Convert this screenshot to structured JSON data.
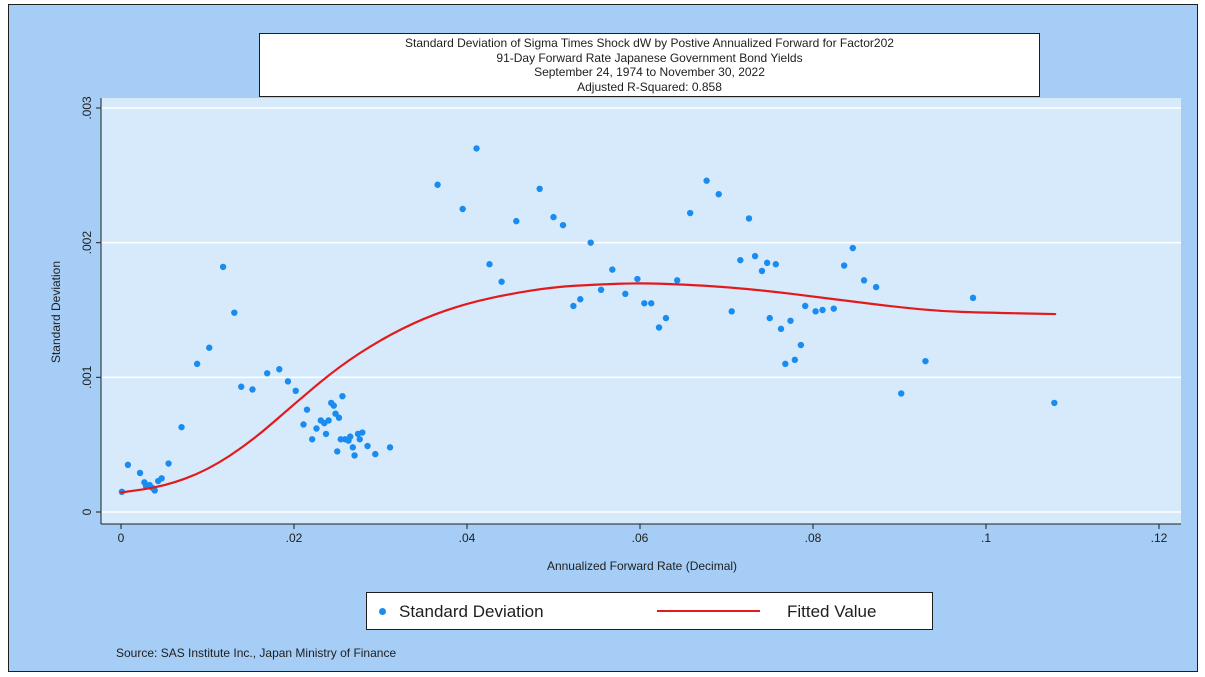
{
  "title_lines": [
    "Standard Deviation of Sigma Times Shock dW by Postive Annualized Forward for Factor202",
    "91-Day Forward Rate Japanese Government Bond Yields",
    "September 24, 1974 to November 30, 2022",
    "Adjusted R-Squared: 0.858"
  ],
  "legend": {
    "scatter_label": "Standard Deviation",
    "line_label": "Fitted Value",
    "placement": "bottom"
  },
  "source_note": "Source: SAS Institute Inc., Japan Ministry of Finance",
  "colors": {
    "outer_background": "#a6cdf5",
    "plot_background": "#d6eafc",
    "scatter": "#1a8cf0",
    "fitted_line": "#e31a1c",
    "gridline": "#ffffff"
  },
  "chart_data": {
    "type": "scatter",
    "xlabel": "Annualized Forward Rate (Decimal)",
    "ylabel": "Standard Deviation",
    "xlim": [
      0,
      0.12
    ],
    "ylim": [
      0,
      0.003
    ],
    "x_ticks": [
      0,
      0.02,
      0.04,
      0.06,
      0.08,
      0.1,
      0.12
    ],
    "x_tick_labels": [
      "0",
      ".02",
      ".04",
      ".06",
      ".08",
      ".1",
      ".12"
    ],
    "y_ticks": [
      0,
      0.001,
      0.002,
      0.003
    ],
    "y_tick_labels": [
      "0",
      ".001",
      ".002",
      ".003"
    ],
    "grid": "horizontal",
    "series": [
      {
        "name": "Standard Deviation",
        "kind": "scatter",
        "points": [
          [
            0.0001,
            0.00015
          ],
          [
            0.0008,
            0.00035
          ],
          [
            0.0022,
            0.00029
          ],
          [
            0.0027,
            0.00022
          ],
          [
            0.0029,
            0.00019
          ],
          [
            0.0033,
            0.0002
          ],
          [
            0.0036,
            0.00018
          ],
          [
            0.0039,
            0.00016
          ],
          [
            0.0043,
            0.00023
          ],
          [
            0.0047,
            0.00025
          ],
          [
            0.0055,
            0.00036
          ],
          [
            0.007,
            0.00063
          ],
          [
            0.0088,
            0.0011
          ],
          [
            0.0102,
            0.00122
          ],
          [
            0.0118,
            0.00182
          ],
          [
            0.0131,
            0.00148
          ],
          [
            0.0139,
            0.00093
          ],
          [
            0.0152,
            0.00091
          ],
          [
            0.0169,
            0.00103
          ],
          [
            0.0183,
            0.00106
          ],
          [
            0.0193,
            0.00097
          ],
          [
            0.0202,
            0.0009
          ],
          [
            0.0211,
            0.00065
          ],
          [
            0.0215,
            0.00076
          ],
          [
            0.0221,
            0.00054
          ],
          [
            0.0226,
            0.00062
          ],
          [
            0.0231,
            0.00068
          ],
          [
            0.0235,
            0.00066
          ],
          [
            0.0237,
            0.00058
          ],
          [
            0.024,
            0.00068
          ],
          [
            0.0243,
            0.00081
          ],
          [
            0.0246,
            0.00079
          ],
          [
            0.0248,
            0.00073
          ],
          [
            0.025,
            0.00045
          ],
          [
            0.0252,
            0.0007
          ],
          [
            0.0254,
            0.00054
          ],
          [
            0.0256,
            0.00086
          ],
          [
            0.0259,
            0.00054
          ],
          [
            0.0263,
            0.00053
          ],
          [
            0.0265,
            0.00056
          ],
          [
            0.0268,
            0.00048
          ],
          [
            0.027,
            0.00042
          ],
          [
            0.0274,
            0.00058
          ],
          [
            0.0276,
            0.00054
          ],
          [
            0.0279,
            0.00059
          ],
          [
            0.0285,
            0.00049
          ],
          [
            0.0294,
            0.00043
          ],
          [
            0.0311,
            0.00048
          ],
          [
            0.0366,
            0.00243
          ],
          [
            0.0395,
            0.00225
          ],
          [
            0.0411,
            0.0027
          ],
          [
            0.0426,
            0.00184
          ],
          [
            0.044,
            0.00171
          ],
          [
            0.0457,
            0.00216
          ],
          [
            0.0484,
            0.0024
          ],
          [
            0.05,
            0.00219
          ],
          [
            0.0511,
            0.00213
          ],
          [
            0.0523,
            0.00153
          ],
          [
            0.0531,
            0.00158
          ],
          [
            0.0543,
            0.002
          ],
          [
            0.0555,
            0.00165
          ],
          [
            0.0568,
            0.0018
          ],
          [
            0.0583,
            0.00162
          ],
          [
            0.0597,
            0.00173
          ],
          [
            0.0605,
            0.00155
          ],
          [
            0.0613,
            0.00155
          ],
          [
            0.0622,
            0.00137
          ],
          [
            0.063,
            0.00144
          ],
          [
            0.0643,
            0.00172
          ],
          [
            0.0658,
            0.00222
          ],
          [
            0.0677,
            0.00246
          ],
          [
            0.0691,
            0.00236
          ],
          [
            0.0706,
            0.00149
          ],
          [
            0.0716,
            0.00187
          ],
          [
            0.0726,
            0.00218
          ],
          [
            0.0733,
            0.0019
          ],
          [
            0.0741,
            0.00179
          ],
          [
            0.0747,
            0.00185
          ],
          [
            0.075,
            0.00144
          ],
          [
            0.0757,
            0.00184
          ],
          [
            0.0763,
            0.00136
          ],
          [
            0.0768,
            0.0011
          ],
          [
            0.0774,
            0.00142
          ],
          [
            0.0779,
            0.00113
          ],
          [
            0.0786,
            0.00124
          ],
          [
            0.0791,
            0.00153
          ],
          [
            0.0803,
            0.00149
          ],
          [
            0.0811,
            0.0015
          ],
          [
            0.0824,
            0.00151
          ],
          [
            0.0836,
            0.00183
          ],
          [
            0.0846,
            0.00196
          ],
          [
            0.0859,
            0.00172
          ],
          [
            0.0873,
            0.00167
          ],
          [
            0.0902,
            0.00088
          ],
          [
            0.093,
            0.00112
          ],
          [
            0.0985,
            0.00159
          ],
          [
            0.1079,
            0.00081
          ]
        ]
      },
      {
        "name": "Fitted Value",
        "kind": "line",
        "points": [
          [
            0.0,
            0.000145
          ],
          [
            0.005,
            0.00019
          ],
          [
            0.01,
            0.00031
          ],
          [
            0.015,
            0.00052
          ],
          [
            0.02,
            0.0008
          ],
          [
            0.025,
            0.00107
          ],
          [
            0.03,
            0.00128
          ],
          [
            0.035,
            0.00144
          ],
          [
            0.04,
            0.00155
          ],
          [
            0.045,
            0.00162
          ],
          [
            0.05,
            0.00167
          ],
          [
            0.055,
            0.00169
          ],
          [
            0.06,
            0.0017
          ],
          [
            0.065,
            0.00169
          ],
          [
            0.07,
            0.00167
          ],
          [
            0.075,
            0.00164
          ],
          [
            0.08,
            0.0016
          ],
          [
            0.085,
            0.00156
          ],
          [
            0.09,
            0.00152
          ],
          [
            0.095,
            0.00149
          ],
          [
            0.1,
            0.00148
          ],
          [
            0.108,
            0.00147
          ]
        ]
      }
    ]
  }
}
